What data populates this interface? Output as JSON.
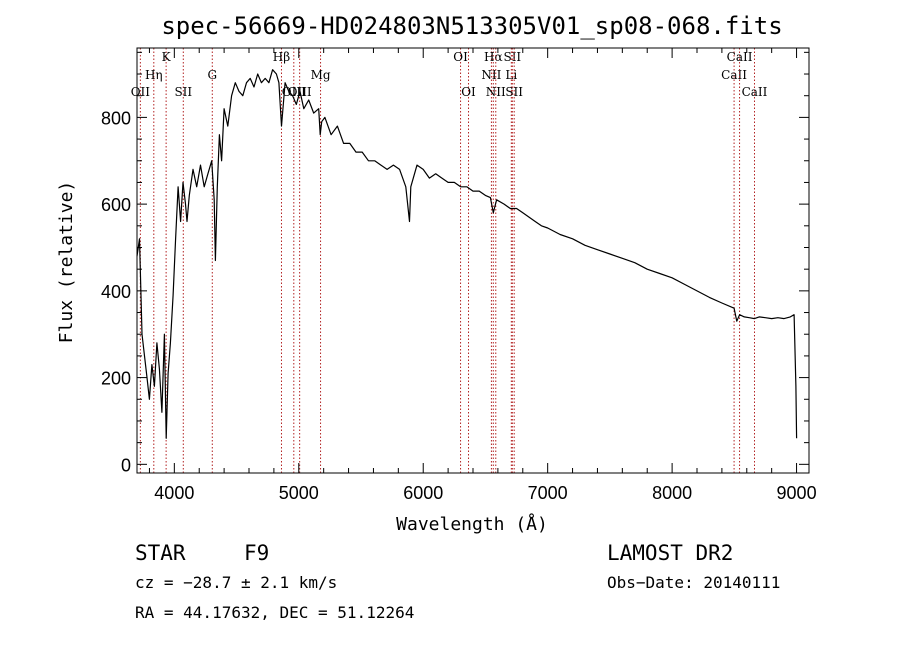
{
  "chart_data": {
    "type": "line",
    "title": "spec-56669-HD024803N513305V01_sp08-068.fits",
    "xlabel": "Wavelength (Å)",
    "ylabel": "Flux (relative)",
    "xlim": [
      3700,
      9100
    ],
    "ylim": [
      -20,
      960
    ],
    "xticks": [
      4000,
      5000,
      6000,
      7000,
      8000,
      9000
    ],
    "yticks": [
      0,
      200,
      400,
      600,
      800
    ],
    "series": [
      {
        "x": [
          3700,
          3720,
          3740,
          3760,
          3780,
          3800,
          3820,
          3840,
          3860,
          3880,
          3900,
          3920,
          3935,
          3950,
          3968,
          3990,
          4010,
          4030,
          4050,
          4070,
          4090,
          4102,
          4120,
          4150,
          4180,
          4210,
          4240,
          4270,
          4300,
          4320,
          4330,
          4345,
          4362,
          4380,
          4400,
          4430,
          4460,
          4490,
          4520,
          4550,
          4580,
          4610,
          4640,
          4670,
          4700,
          4730,
          4760,
          4790,
          4820,
          4840,
          4861,
          4890,
          4920,
          4950,
          4980,
          5010,
          5040,
          5080,
          5120,
          5160,
          5172,
          5184,
          5210,
          5260,
          5310,
          5360,
          5410,
          5460,
          5510,
          5560,
          5610,
          5660,
          5710,
          5760,
          5810,
          5860,
          5890,
          5900,
          5950,
          6000,
          6050,
          6100,
          6150,
          6200,
          6250,
          6300,
          6350,
          6400,
          6450,
          6500,
          6540,
          6563,
          6590,
          6650,
          6700,
          6750,
          6800,
          6850,
          6900,
          6950,
          7000,
          7100,
          7200,
          7300,
          7400,
          7500,
          7600,
          7700,
          7800,
          7900,
          8000,
          8100,
          8200,
          8300,
          8400,
          8498,
          8520,
          8542,
          8580,
          8620,
          8662,
          8700,
          8750,
          8800,
          8850,
          8900,
          8950,
          8980,
          8995,
          9000
        ],
        "y": [
          480,
          520,
          300,
          250,
          200,
          150,
          230,
          180,
          280,
          220,
          120,
          300,
          60,
          210,
          280,
          390,
          520,
          640,
          560,
          650,
          600,
          560,
          620,
          680,
          640,
          690,
          640,
          670,
          700,
          610,
          470,
          640,
          760,
          700,
          820,
          780,
          850,
          880,
          860,
          850,
          880,
          890,
          870,
          900,
          880,
          890,
          880,
          910,
          900,
          880,
          780,
          880,
          860,
          850,
          830,
          860,
          820,
          840,
          810,
          820,
          760,
          790,
          800,
          760,
          780,
          740,
          740,
          720,
          720,
          700,
          700,
          690,
          680,
          690,
          680,
          640,
          560,
          640,
          690,
          680,
          660,
          670,
          660,
          650,
          650,
          640,
          640,
          630,
          630,
          620,
          615,
          580,
          610,
          600,
          590,
          590,
          580,
          570,
          560,
          550,
          545,
          530,
          520,
          505,
          495,
          485,
          475,
          465,
          450,
          440,
          430,
          415,
          400,
          385,
          372,
          360,
          330,
          345,
          340,
          338,
          336,
          340,
          338,
          336,
          338,
          336,
          340,
          345,
          180,
          60
        ]
      }
    ],
    "spectral_lines": [
      {
        "label": "OII",
        "wavelength": 3727,
        "row": 3
      },
      {
        "label": "Hη",
        "wavelength": 3835,
        "row": 2
      },
      {
        "label": "K",
        "wavelength": 3934,
        "row": 1
      },
      {
        "label": "SII",
        "wavelength": 4072,
        "row": 3
      },
      {
        "label": "G",
        "wavelength": 4305,
        "row": 2
      },
      {
        "label": "Hβ",
        "wavelength": 4861,
        "row": 1
      },
      {
        "label": "OIII",
        "wavelength": 4960,
        "row": 3
      },
      {
        "label": "OIII",
        "wavelength": 5007,
        "row": 3
      },
      {
        "label": "Mg",
        "wavelength": 5175,
        "row": 2
      },
      {
        "label": "OI",
        "wavelength": 6300,
        "row": 1
      },
      {
        "label": "OI",
        "wavelength": 6364,
        "row": 3
      },
      {
        "label": "NII",
        "wavelength": 6548,
        "row": 2
      },
      {
        "label": "Hα",
        "wavelength": 6563,
        "row": 1
      },
      {
        "label": "NII",
        "wavelength": 6583,
        "row": 3
      },
      {
        "label": "Li",
        "wavelength": 6708,
        "row": 2
      },
      {
        "label": "SII",
        "wavelength": 6716,
        "row": 1
      },
      {
        "label": "SII",
        "wavelength": 6731,
        "row": 3
      },
      {
        "label": "CaII",
        "wavelength": 8498,
        "row": 2
      },
      {
        "label": "CaII",
        "wavelength": 8542,
        "row": 1
      },
      {
        "label": "CaII",
        "wavelength": 8662,
        "row": 3
      }
    ],
    "grid": false,
    "colors": {
      "spectrum": "#000000",
      "line_markers": "#b22222"
    }
  },
  "info": {
    "class": "STAR",
    "subclass": "F9",
    "cz": "cz = −28.7 ± 2.1 km/s",
    "coords": "RA =  44.17632, DEC =  51.12264",
    "survey": "LAMOST DR2",
    "obs_date": "Obs−Date: 20140111"
  }
}
